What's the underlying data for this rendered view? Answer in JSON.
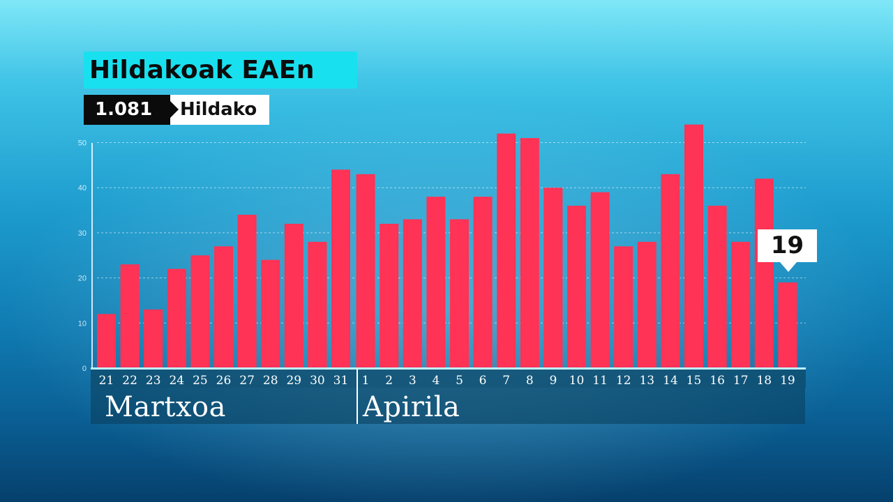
{
  "header": {
    "title": "Hildakoak EAEn",
    "total_value": "1.081",
    "total_label": "Hildako"
  },
  "months": [
    "Martxoa",
    "Apirila"
  ],
  "callout": {
    "value": "19"
  },
  "colors": {
    "bar": "#ff3355",
    "title_bg": "#19e0ef",
    "grid": "#ffffff"
  },
  "chart_data": {
    "type": "bar",
    "categories": [
      "21",
      "22",
      "23",
      "24",
      "25",
      "26",
      "27",
      "28",
      "29",
      "30",
      "31",
      "1",
      "2",
      "3",
      "4",
      "5",
      "6",
      "7",
      "8",
      "9",
      "10",
      "11",
      "12",
      "13",
      "14",
      "15",
      "16",
      "17",
      "18",
      "19"
    ],
    "values": [
      12,
      23,
      13,
      22,
      25,
      27,
      34,
      24,
      32,
      28,
      44,
      43,
      32,
      33,
      38,
      33,
      38,
      52,
      51,
      40,
      36,
      39,
      27,
      28,
      43,
      54,
      36,
      28,
      42,
      19
    ],
    "yticks": [
      "0",
      "10",
      "20",
      "30",
      "40",
      "50"
    ],
    "ylim": [
      0,
      50
    ],
    "grid": true,
    "title": "Hildakoak EAEn"
  }
}
